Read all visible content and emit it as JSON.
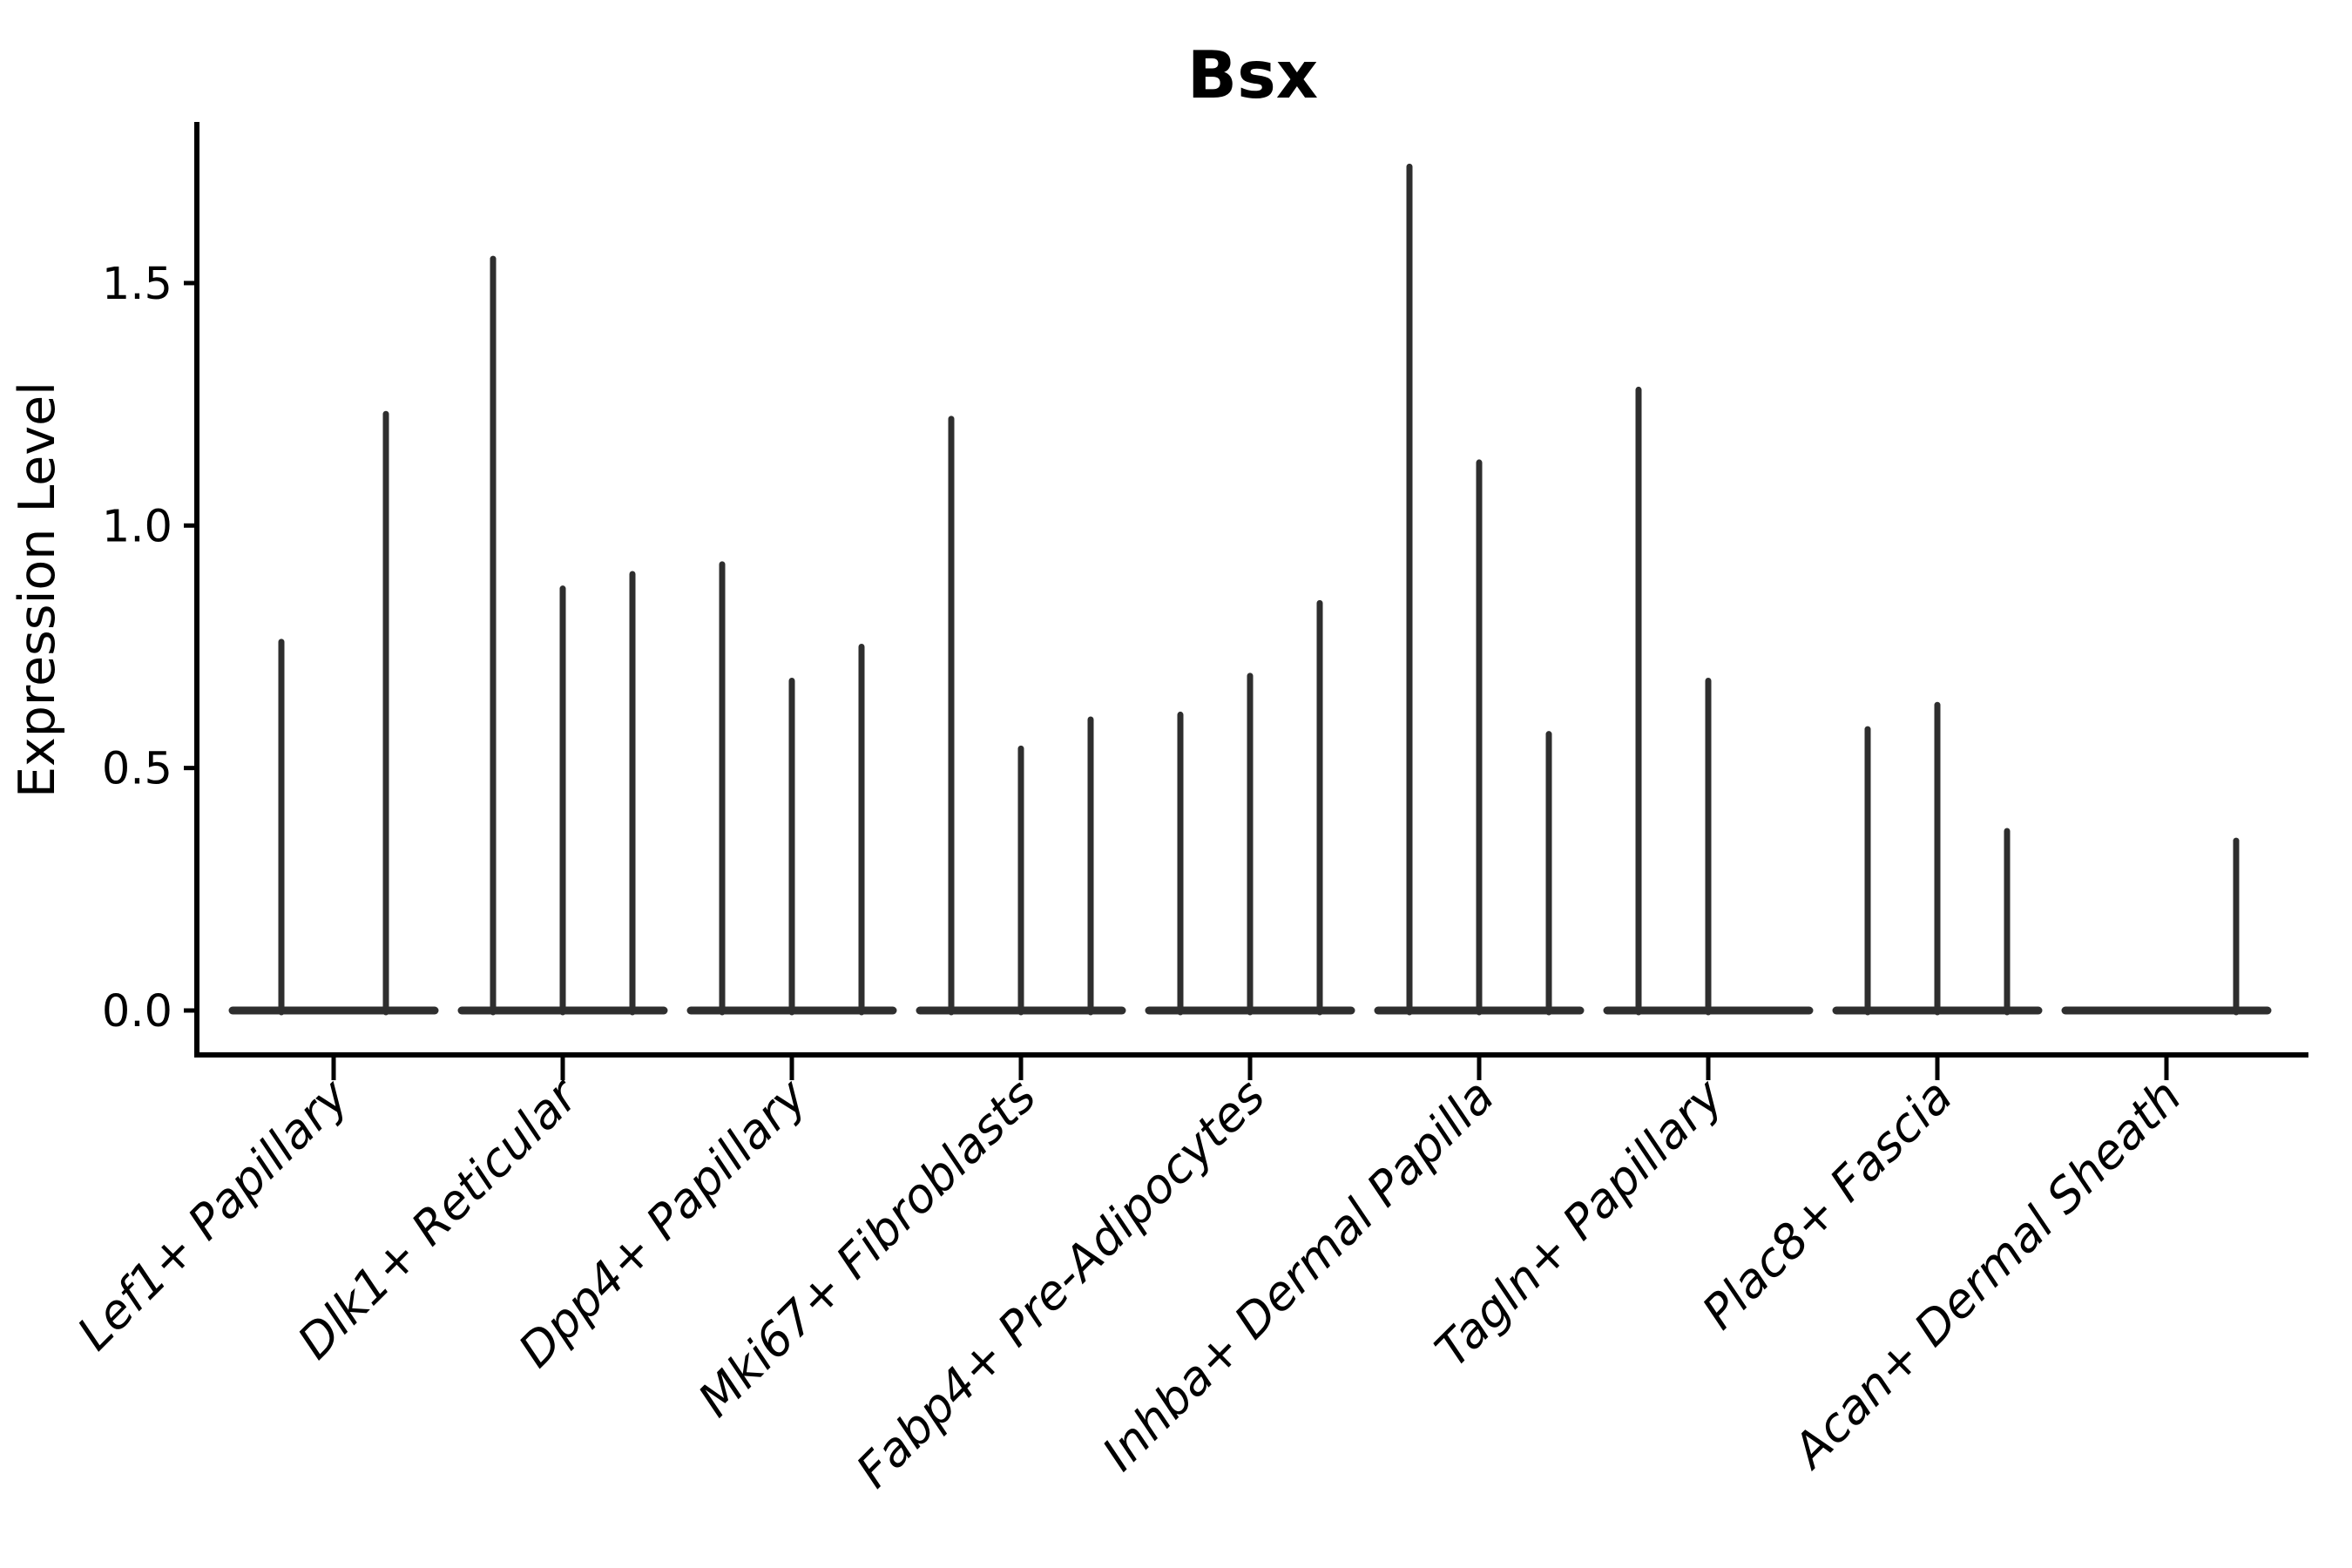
{
  "chart_data": {
    "type": "violin",
    "title": "Bsx",
    "ylabel": "Expression Level",
    "xlabel": "",
    "yticks": [
      0.0,
      0.5,
      1.0,
      1.5
    ],
    "ylim": [
      -0.09,
      1.83
    ],
    "grid": false,
    "legend": "none",
    "description": "Very thin (spike-like) violins; each category shows 2-3 violins whose flat bodies sit at 0 and whose peaks reach the listed expression value. A peak of 0 means a flat violin at the baseline.",
    "categories": [
      "Lef1+ Papillary",
      "Dlk1+ Reticular",
      "Dpp4+ Papillary",
      "Mki67+ Fibroblasts",
      "Fabp4+ Pre-Adipocytes",
      "Inhba+ Dermal Papilla",
      "Tagln+ Papillary",
      "Plac8+ Fascia",
      "Acan+ Dermal Sheath"
    ],
    "groups": [
      {
        "category": "Lef1+ Papillary",
        "violin_peaks": [
          0.76,
          1.23
        ]
      },
      {
        "category": "Dlk1+ Reticular",
        "violin_peaks": [
          1.55,
          0.87,
          0.9
        ]
      },
      {
        "category": "Dpp4+ Papillary",
        "violin_peaks": [
          0.92,
          0.68,
          0.75
        ]
      },
      {
        "category": "Mki67+ Fibroblasts",
        "violin_peaks": [
          1.22,
          0.54,
          0.6
        ]
      },
      {
        "category": "Fabp4+ Pre-Adipocytes",
        "violin_peaks": [
          0.61,
          0.69,
          0.84
        ]
      },
      {
        "category": "Inhba+ Dermal Papilla",
        "violin_peaks": [
          1.74,
          1.13,
          0.57
        ]
      },
      {
        "category": "Tagln+ Papillary",
        "violin_peaks": [
          1.28,
          0.68,
          0
        ]
      },
      {
        "category": "Plac8+ Fascia",
        "violin_peaks": [
          0.58,
          0.63,
          0.37
        ]
      },
      {
        "category": "Acan+ Dermal Sheath",
        "violin_peaks": [
          0,
          0,
          0.35
        ]
      }
    ],
    "colors": {
      "violin": "#2e2e2e",
      "axis": "#000000",
      "background": "#ffffff"
    }
  }
}
